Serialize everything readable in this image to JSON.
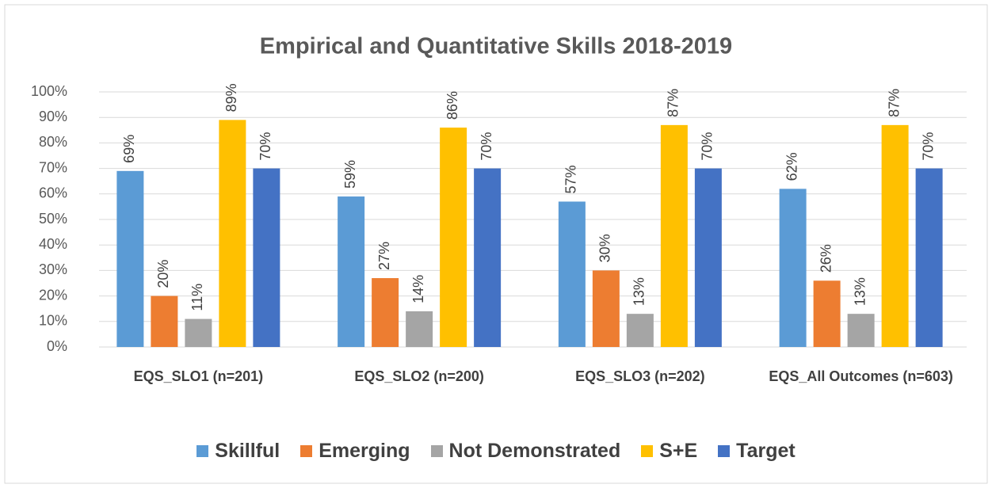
{
  "chart_data": {
    "type": "bar",
    "title": "Empirical and Quantitative Skills 2018-2019",
    "categories": [
      "EQS_SLO1 (n=201)",
      "EQS_SLO2 (n=200)",
      "EQS_SLO3 (n=202)",
      "EQS_All Outcomes (n=603)"
    ],
    "series": [
      {
        "name": "Skillful",
        "color": "#5b9bd5",
        "values": [
          69,
          59,
          57,
          62
        ],
        "value_labels": [
          "69%",
          "59%",
          "57%",
          "62%"
        ]
      },
      {
        "name": "Emerging",
        "color": "#ed7d31",
        "values": [
          20,
          27,
          30,
          26
        ],
        "value_labels": [
          "20%",
          "27%",
          "30%",
          "26%"
        ]
      },
      {
        "name": "Not Demonstrated",
        "color": "#a5a5a5",
        "values": [
          11,
          14,
          13,
          13
        ],
        "value_labels": [
          "11%",
          "14%",
          "13%",
          "13%"
        ]
      },
      {
        "name": "S+E",
        "color": "#ffc000",
        "values": [
          89,
          86,
          87,
          87
        ],
        "value_labels": [
          "89%",
          "86%",
          "87%",
          "87%"
        ]
      },
      {
        "name": "Target",
        "color": "#4472c4",
        "values": [
          70,
          70,
          70,
          70
        ],
        "value_labels": [
          "70%",
          "70%",
          "70%",
          "70%"
        ]
      }
    ],
    "ylim": [
      0,
      100
    ],
    "yticks": [
      {
        "value": 0,
        "label": "0%"
      },
      {
        "value": 10,
        "label": "10%"
      },
      {
        "value": 20,
        "label": "20%"
      },
      {
        "value": 30,
        "label": "30%"
      },
      {
        "value": 40,
        "label": "40%"
      },
      {
        "value": 50,
        "label": "50%"
      },
      {
        "value": 60,
        "label": "60%"
      },
      {
        "value": 70,
        "label": "70%"
      },
      {
        "value": 80,
        "label": "80%"
      },
      {
        "value": 90,
        "label": "90%"
      },
      {
        "value": 100,
        "label": "100%"
      }
    ],
    "grid": true,
    "legend": "bottom"
  }
}
